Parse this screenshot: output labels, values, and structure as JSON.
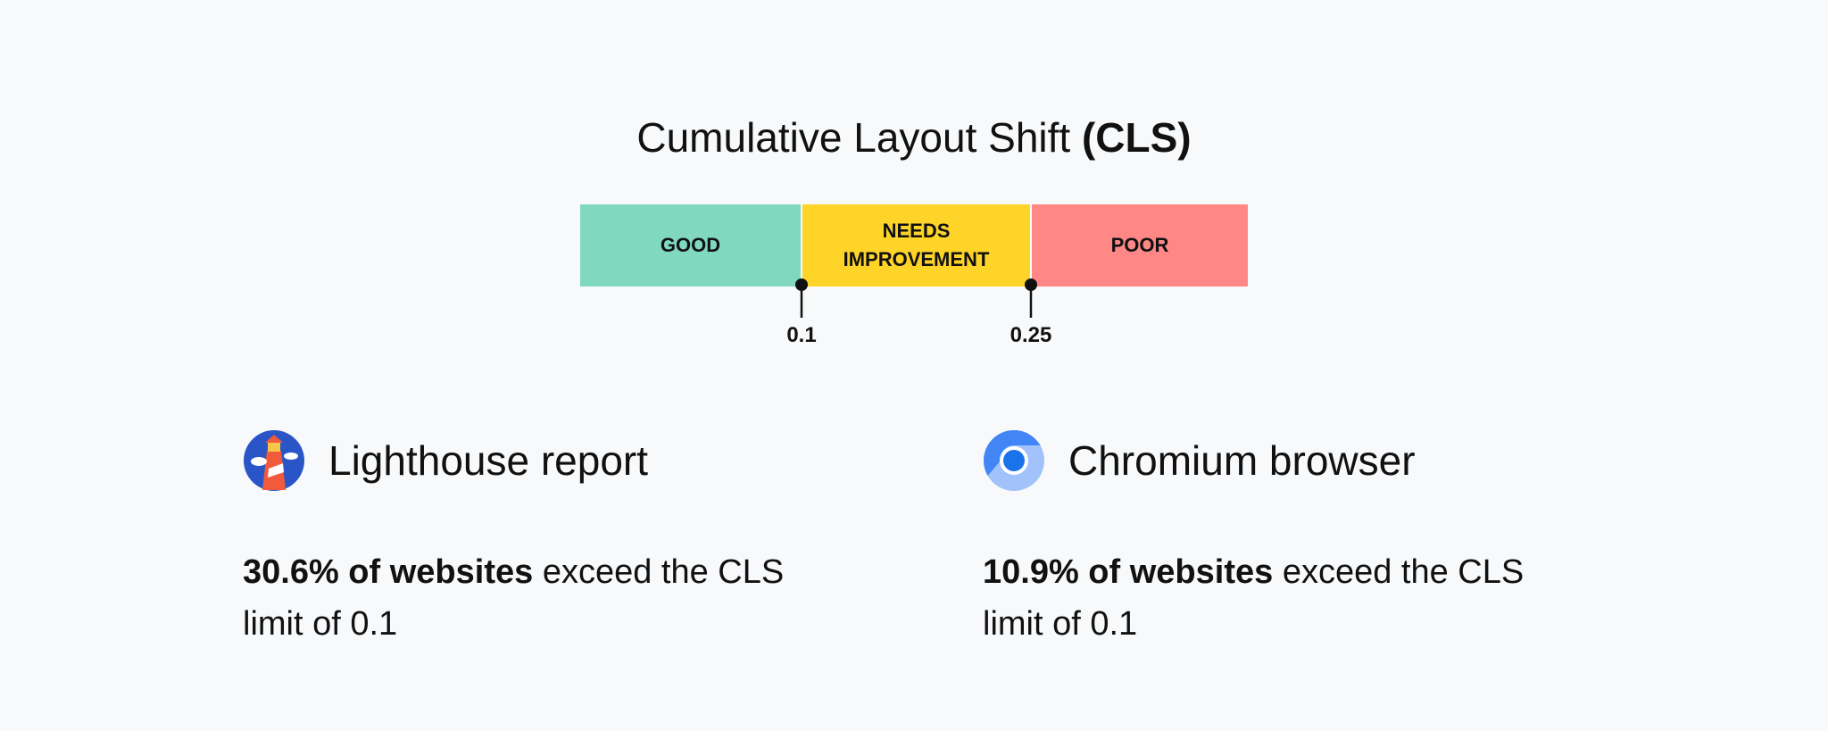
{
  "title": {
    "text": "Cumulative Layout Shift",
    "emphasis": "(CLS)"
  },
  "scale": {
    "segments": [
      {
        "label": "GOOD",
        "color": "#80d9bf"
      },
      {
        "label": "NEEDS IMPROVEMENT",
        "color": "#ffd429"
      },
      {
        "label": "POOR",
        "color": "#ff8785"
      }
    ],
    "thresholds": [
      0.1,
      0.25
    ]
  },
  "sources": [
    {
      "name": "Lighthouse report",
      "stat": "30.6% of websites",
      "text": "exceed the CLS limit of 0.1"
    },
    {
      "name": "Chromium browser",
      "stat": "10.9% of websites",
      "text": "exceed the CLS limit of 0.1"
    }
  ]
}
